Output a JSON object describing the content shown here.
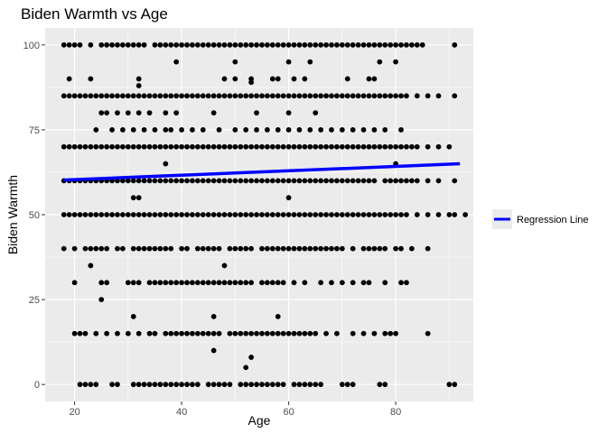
{
  "chart_data": {
    "type": "scatter",
    "title": "Biden Warmth vs Age",
    "xlabel": "Age",
    "ylabel": "Biden Warmth",
    "xlim": [
      14.5,
      94.5
    ],
    "ylim": [
      -5,
      105
    ],
    "xticks": [
      20,
      40,
      60,
      80
    ],
    "yticks": [
      0,
      25,
      50,
      75,
      100
    ],
    "grid": true,
    "panel_background": "#ebebeb",
    "grid_color": "#ffffff",
    "point_color": "#000000",
    "regression": {
      "label": "Regression Line",
      "color": "#0000ff",
      "x": [
        18,
        92
      ],
      "y": [
        60.2,
        65.0
      ]
    },
    "legend_position": "right",
    "rows": [
      {
        "y": 100,
        "xs": [
          18,
          19,
          20,
          21,
          23,
          25,
          26,
          27,
          28,
          29,
          30,
          31,
          32,
          33,
          35,
          36,
          37,
          38,
          39,
          40,
          41,
          42,
          43,
          44,
          45,
          46,
          47,
          48,
          49,
          50,
          51,
          52,
          53,
          54,
          55,
          56,
          57,
          58,
          59,
          60,
          61,
          62,
          63,
          64,
          65,
          66,
          67,
          68,
          69,
          70,
          71,
          72,
          73,
          74,
          75,
          76,
          77,
          78,
          79,
          80,
          81,
          82,
          83,
          84,
          85,
          91
        ]
      },
      {
        "y": 95,
        "xs": [
          39,
          50,
          60,
          64,
          77,
          80
        ]
      },
      {
        "y": 90,
        "xs": [
          19,
          23,
          32,
          48,
          50,
          53,
          57,
          58,
          61,
          63,
          71,
          75,
          76
        ]
      },
      {
        "y": 89,
        "xs": [
          53
        ]
      },
      {
        "y": 88,
        "xs": [
          32
        ]
      },
      {
        "y": 85,
        "xs": [
          18,
          19,
          20,
          21,
          22,
          23,
          24,
          25,
          26,
          27,
          28,
          29,
          30,
          31,
          32,
          33,
          34,
          35,
          36,
          37,
          38,
          39,
          40,
          41,
          42,
          43,
          44,
          45,
          46,
          47,
          48,
          49,
          50,
          51,
          52,
          53,
          54,
          55,
          56,
          57,
          58,
          59,
          60,
          61,
          62,
          63,
          64,
          65,
          66,
          67,
          68,
          69,
          70,
          71,
          72,
          73,
          74,
          75,
          76,
          77,
          78,
          79,
          80,
          81,
          82,
          84,
          86,
          88,
          91
        ]
      },
      {
        "y": 80,
        "xs": [
          25,
          26,
          28,
          30,
          32,
          34,
          37,
          39,
          46,
          54,
          60,
          65
        ]
      },
      {
        "y": 75,
        "xs": [
          24,
          27,
          29,
          31,
          33,
          35,
          37,
          38,
          40,
          42,
          44,
          47,
          50,
          52,
          54,
          56,
          58,
          60,
          62,
          64,
          66,
          68,
          70,
          72,
          74,
          76,
          78,
          81
        ]
      },
      {
        "y": 70,
        "xs": [
          18,
          19,
          20,
          21,
          22,
          23,
          24,
          25,
          26,
          27,
          28,
          29,
          30,
          31,
          32,
          33,
          34,
          35,
          36,
          37,
          38,
          39,
          40,
          41,
          42,
          43,
          44,
          45,
          46,
          47,
          48,
          49,
          50,
          51,
          52,
          53,
          54,
          55,
          56,
          57,
          58,
          59,
          60,
          61,
          62,
          63,
          64,
          65,
          66,
          67,
          68,
          69,
          70,
          71,
          72,
          73,
          74,
          75,
          76,
          77,
          78,
          79,
          80,
          81,
          82,
          83,
          84,
          86,
          88,
          90
        ]
      },
      {
        "y": 65,
        "xs": [
          37,
          80
        ]
      },
      {
        "y": 60,
        "xs": [
          18,
          19,
          20,
          21,
          22,
          23,
          24,
          25,
          26,
          27,
          28,
          29,
          30,
          31,
          32,
          33,
          34,
          35,
          36,
          37,
          38,
          39,
          40,
          41,
          42,
          43,
          44,
          45,
          46,
          47,
          48,
          49,
          50,
          51,
          52,
          53,
          54,
          55,
          56,
          57,
          58,
          59,
          60,
          61,
          62,
          63,
          64,
          65,
          66,
          67,
          68,
          69,
          70,
          71,
          72,
          73,
          74,
          75,
          76,
          78,
          79,
          80,
          81,
          82,
          83,
          84,
          86,
          88,
          91
        ]
      },
      {
        "y": 55,
        "xs": [
          31,
          32,
          60
        ]
      },
      {
        "y": 50,
        "xs": [
          18,
          19,
          20,
          21,
          22,
          23,
          24,
          25,
          26,
          27,
          28,
          29,
          30,
          31,
          32,
          33,
          34,
          35,
          36,
          37,
          38,
          39,
          40,
          41,
          42,
          43,
          44,
          45,
          46,
          47,
          48,
          49,
          50,
          51,
          52,
          53,
          54,
          55,
          56,
          57,
          58,
          59,
          60,
          61,
          62,
          63,
          64,
          65,
          66,
          67,
          68,
          69,
          70,
          71,
          72,
          73,
          74,
          75,
          76,
          77,
          78,
          79,
          80,
          81,
          82,
          84,
          86,
          88,
          90,
          91,
          93
        ]
      },
      {
        "y": 40,
        "xs": [
          18,
          20,
          22,
          23,
          24,
          25,
          26,
          28,
          29,
          31,
          32,
          33,
          34,
          35,
          36,
          37,
          38,
          40,
          41,
          43,
          44,
          45,
          46,
          47,
          49,
          50,
          51,
          52,
          53,
          55,
          56,
          57,
          58,
          59,
          60,
          61,
          62,
          63,
          64,
          65,
          66,
          67,
          68,
          69,
          70,
          72,
          74,
          75,
          76,
          77,
          78,
          80,
          81,
          83,
          86
        ]
      },
      {
        "y": 35,
        "xs": [
          23,
          48
        ]
      },
      {
        "y": 30,
        "xs": [
          20,
          25,
          26,
          30,
          31,
          32,
          34,
          35,
          36,
          37,
          38,
          39,
          40,
          41,
          42,
          43,
          44,
          45,
          46,
          47,
          48,
          49,
          50,
          51,
          52,
          53,
          55,
          56,
          57,
          58,
          59,
          61,
          63,
          66,
          68,
          70,
          72,
          74,
          75,
          78,
          81,
          82
        ]
      },
      {
        "y": 25,
        "xs": [
          25
        ]
      },
      {
        "y": 20,
        "xs": [
          31,
          46,
          58
        ]
      },
      {
        "y": 15,
        "xs": [
          20,
          21,
          22,
          24,
          26,
          28,
          30,
          32,
          34,
          35,
          37,
          38,
          39,
          40,
          41,
          42,
          43,
          44,
          45,
          46,
          47,
          49,
          50,
          51,
          52,
          53,
          54,
          55,
          56,
          57,
          58,
          59,
          60,
          61,
          62,
          63,
          64,
          65,
          67,
          69,
          72,
          74,
          76,
          78,
          79,
          80,
          86
        ]
      },
      {
        "y": 10,
        "xs": [
          46
        ]
      },
      {
        "y": 8,
        "xs": [
          53
        ]
      },
      {
        "y": 5,
        "xs": [
          52
        ]
      },
      {
        "y": 0,
        "xs": [
          21,
          22,
          23,
          24,
          27,
          28,
          31,
          32,
          33,
          34,
          35,
          36,
          37,
          38,
          39,
          40,
          41,
          42,
          43,
          45,
          46,
          47,
          48,
          49,
          51,
          52,
          53,
          54,
          55,
          56,
          57,
          58,
          59,
          61,
          62,
          63,
          64,
          65,
          66,
          70,
          71,
          72,
          77,
          78,
          90,
          91
        ]
      }
    ]
  }
}
